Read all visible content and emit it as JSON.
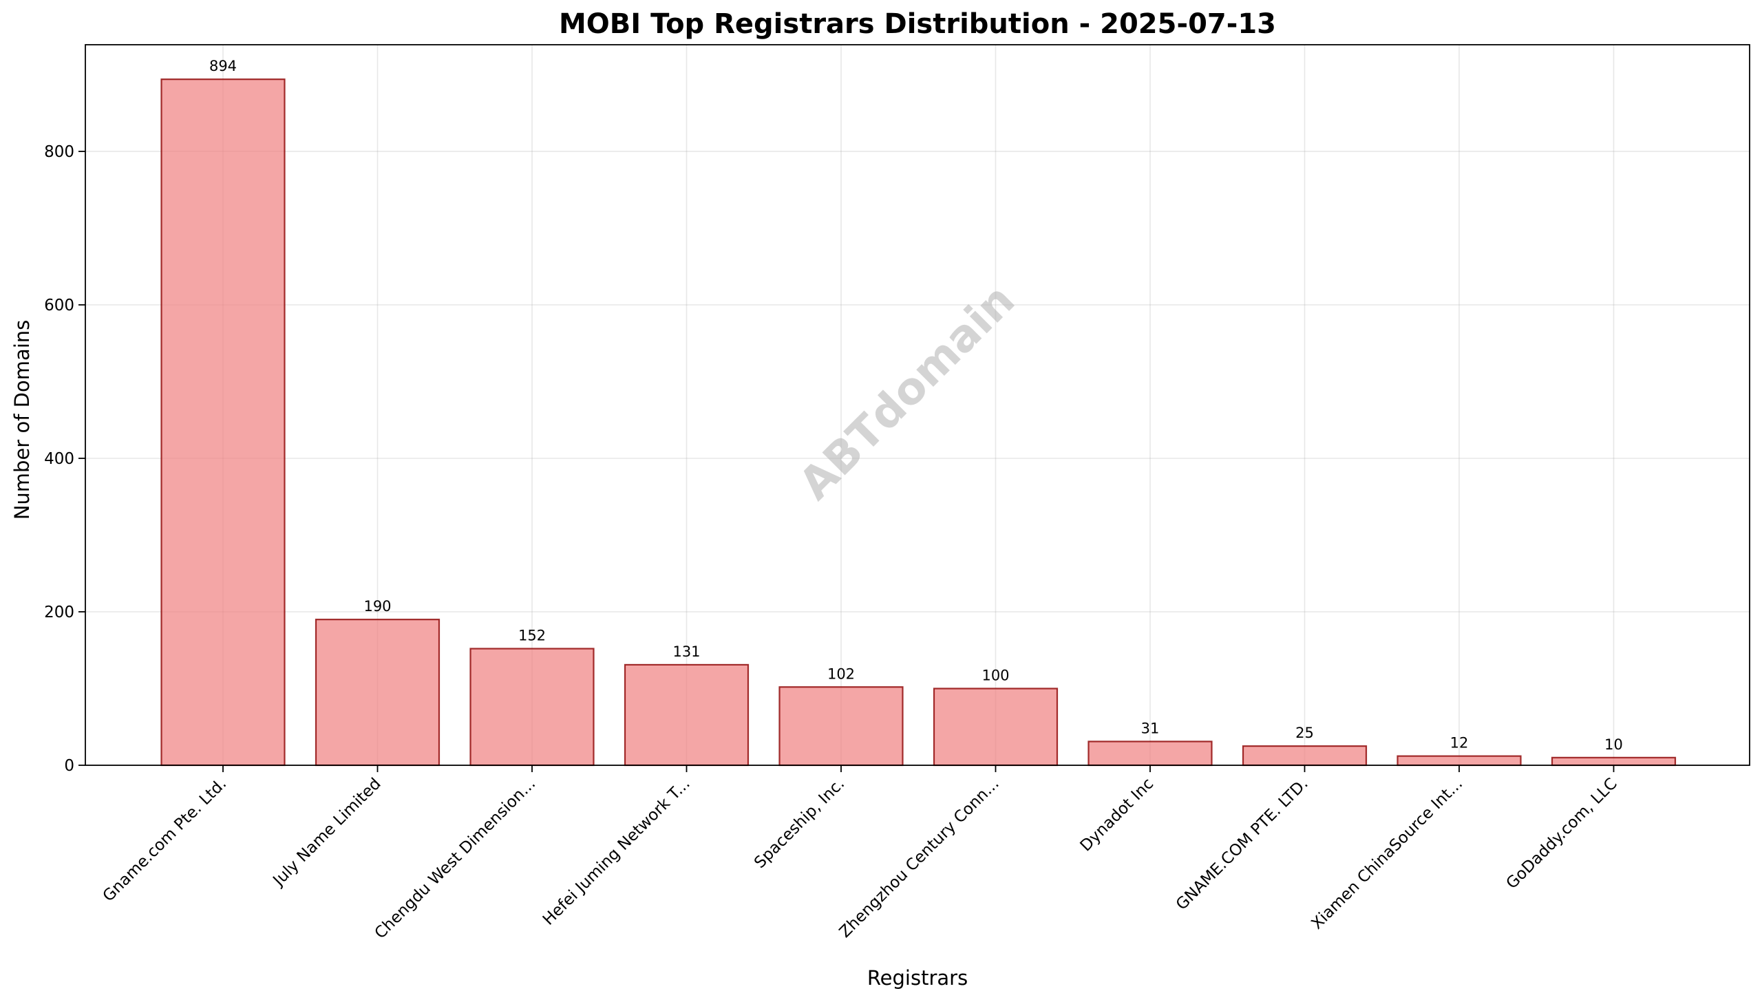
{
  "chart_data": {
    "type": "bar",
    "title": "MOBI Top Registrars Distribution - 2025-07-13",
    "xlabel": "Registrars",
    "ylabel": "Number of Domains",
    "categories": [
      "Gname.com Pte. Ltd.",
      "July Name Limited",
      "Chengdu West Dimension...",
      "Hefei Juming Network T...",
      "Spaceship, Inc.",
      "Zhengzhou Century Conn...",
      "Dynadot Inc",
      "GNAME.COM PTE. LTD.",
      "Xiamen ChinaSource Int...",
      "GoDaddy.com, LLC"
    ],
    "values": [
      894,
      190,
      152,
      131,
      102,
      100,
      31,
      25,
      12,
      10
    ],
    "ylim": [
      0,
      939
    ],
    "yticks": [
      0,
      200,
      400,
      600,
      800
    ],
    "grid": true,
    "watermark": "ABTdomain",
    "colors": {
      "bar_fill": "#f08080",
      "bar_edge": "#8b0000"
    }
  }
}
